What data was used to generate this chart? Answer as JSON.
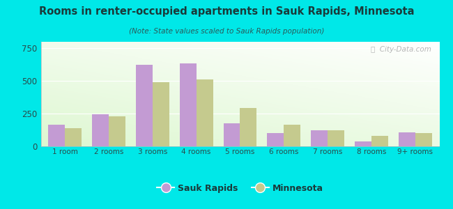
{
  "title": "Rooms in renter-occupied apartments in Sauk Rapids, Minnesota",
  "subtitle": "(Note: State values scaled to Sauk Rapids population)",
  "categories": [
    "1 room",
    "2 rooms",
    "3 rooms",
    "4 rooms",
    "5 rooms",
    "6 rooms",
    "7 rooms",
    "8 rooms",
    "9+ rooms"
  ],
  "sauk_rapids": [
    165,
    245,
    625,
    635,
    175,
    100,
    125,
    40,
    105
  ],
  "minnesota": [
    140,
    230,
    490,
    510,
    295,
    165,
    125,
    80,
    100
  ],
  "sauk_color": "#c39bd3",
  "mn_color": "#c5ca8e",
  "background_outer": "#00e8e8",
  "title_color": "#1a3a3a",
  "subtitle_color": "#2a5a5a",
  "ylim": [
    0,
    800
  ],
  "yticks": [
    0,
    250,
    500,
    750
  ],
  "bar_width": 0.38,
  "watermark": "ⓘ  City-Data.com",
  "legend_sauk": "Sauk Rapids",
  "legend_mn": "Minnesota"
}
